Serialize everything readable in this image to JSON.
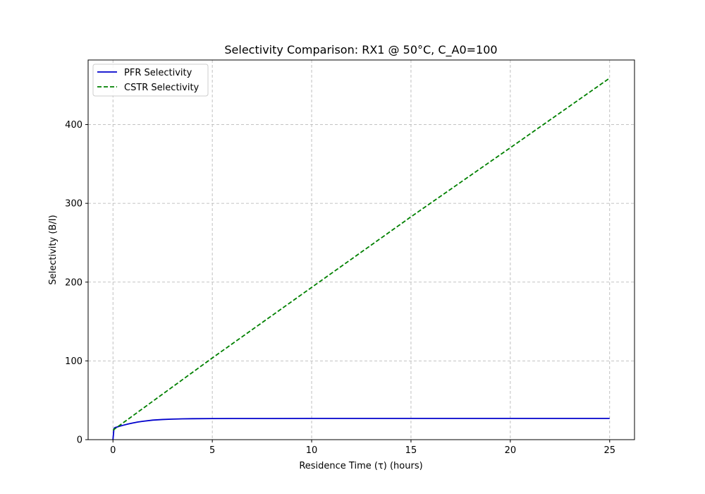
{
  "chart_data": {
    "type": "line",
    "title": "Selectivity Comparison: RX1 @ 50°C, C_A0=100",
    "xlabel": "Residence Time (τ) (hours)",
    "ylabel": "Selectivity (B/I)",
    "xlim": [
      -1.25,
      26.25
    ],
    "ylim": [
      0,
      482
    ],
    "xticks": [
      0,
      5,
      10,
      15,
      20,
      25
    ],
    "yticks": [
      0,
      100,
      200,
      300,
      400
    ],
    "grid": true,
    "legend_position": "top-left",
    "series": [
      {
        "name": "PFR Selectivity",
        "color": "#0000cc",
        "style": "solid",
        "x": [
          0,
          0.05,
          0.1,
          0.2,
          0.3,
          0.5,
          0.75,
          1.0,
          1.25,
          1.5,
          2.0,
          2.5,
          3.0,
          3.5,
          4.0,
          5.0,
          6.0,
          8.0,
          10,
          15,
          20,
          25
        ],
        "y": [
          0,
          14.0,
          15.3,
          16.0,
          16.8,
          18.2,
          19.8,
          21.2,
          22.4,
          23.3,
          24.8,
          25.6,
          26.1,
          26.4,
          26.6,
          26.8,
          26.9,
          26.9,
          27.0,
          27.0,
          27.0,
          27.0
        ]
      },
      {
        "name": "CSTR Selectivity",
        "color": "#008000",
        "style": "dashed",
        "x": [
          0,
          5,
          10,
          15,
          20,
          25
        ],
        "y": [
          12,
          103.7,
          193.3,
          282.9,
          370.6,
          459
        ]
      }
    ]
  }
}
